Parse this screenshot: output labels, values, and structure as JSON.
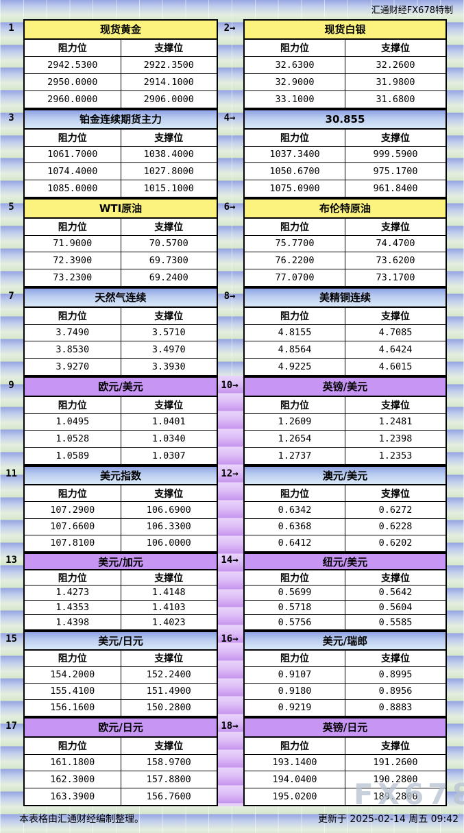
{
  "header": {
    "brand_note": "汇通财经FX678特制"
  },
  "labels": {
    "resistance": "阻力位",
    "support": "支撑位"
  },
  "footer": {
    "source_note": "本表格由汇通财经编制整理。",
    "updated_at": "更新于 2025-02-14 周五 09:42"
  },
  "watermark": "FX678",
  "colors": {
    "yellow_header": "#FBF37E",
    "blue_header_top": "#8FA3E4",
    "blue_header_bottom": "#DAE9F8",
    "purple_header": "#C795F3",
    "background_cell_top": "#97A6E2",
    "background_cell_bottom": "#D5E7CB",
    "purple_strip": "#C795EE"
  },
  "chart_data": {
    "type": "table",
    "columns": [
      "阻力位",
      "支撑位"
    ],
    "tables": [
      {
        "num": "1",
        "title": "现货黄金",
        "style": "yellow",
        "resistance": [
          "2942.5300",
          "2950.0000",
          "2960.0000"
        ],
        "support": [
          "2922.3500",
          "2914.1000",
          "2906.0000"
        ]
      },
      {
        "num": "2→",
        "title": "现货白银",
        "style": "yellow",
        "resistance": [
          "32.6300",
          "32.9000",
          "33.1000"
        ],
        "support": [
          "32.2600",
          "31.9800",
          "31.6800"
        ]
      },
      {
        "num": "3",
        "title": "铂金连续期货主力",
        "style": "blue",
        "resistance": [
          "1061.7000",
          "1074.4000",
          "1085.0000"
        ],
        "support": [
          "1038.4000",
          "1027.8000",
          "1015.1000"
        ]
      },
      {
        "num": "4→",
        "title": "30.855",
        "style": "blue",
        "resistance": [
          "1037.3400",
          "1050.6700",
          "1075.0900"
        ],
        "support": [
          "999.5900",
          "975.1700",
          "961.8400"
        ]
      },
      {
        "num": "5",
        "title": "WTI原油",
        "style": "yellow",
        "resistance": [
          "71.9000",
          "72.3900",
          "73.2300"
        ],
        "support": [
          "70.5700",
          "69.7300",
          "69.2400"
        ]
      },
      {
        "num": "6→",
        "title": "布伦特原油",
        "style": "yellow",
        "resistance": [
          "75.7700",
          "76.2200",
          "77.0700"
        ],
        "support": [
          "74.4700",
          "73.6200",
          "73.1700"
        ]
      },
      {
        "num": "7",
        "title": "天然气连续",
        "style": "blue",
        "resistance": [
          "3.7490",
          "3.8530",
          "3.9270"
        ],
        "support": [
          "3.5710",
          "3.4970",
          "3.3930"
        ]
      },
      {
        "num": "8→",
        "title": "美精铜连续",
        "style": "blue",
        "resistance": [
          "4.8155",
          "4.8564",
          "4.9225"
        ],
        "support": [
          "4.7085",
          "4.6424",
          "4.6015"
        ]
      },
      {
        "num": "9",
        "title": "欧元/美元",
        "style": "purple",
        "resistance": [
          "1.0495",
          "1.0528",
          "1.0589"
        ],
        "support": [
          "1.0401",
          "1.0340",
          "1.0307"
        ]
      },
      {
        "num": "10→",
        "title": "英镑/美元",
        "style": "purple",
        "resistance": [
          "1.2609",
          "1.2654",
          "1.2737"
        ],
        "support": [
          "1.2481",
          "1.2398",
          "1.2353"
        ]
      },
      {
        "num": "11",
        "title": "美元指数",
        "style": "blue",
        "resistance": [
          "107.2900",
          "107.6600",
          "107.8100"
        ],
        "support": [
          "106.6900",
          "106.3300",
          "106.0000"
        ]
      },
      {
        "num": "12→",
        "title": "澳元/美元",
        "style": "blue",
        "resistance": [
          "0.6342",
          "0.6368",
          "0.6412"
        ],
        "support": [
          "0.6272",
          "0.6228",
          "0.6202"
        ]
      },
      {
        "num": "13",
        "title": "美元/加元",
        "style": "purple",
        "resistance": [
          "1.4273",
          "1.4353",
          "1.4398"
        ],
        "support": [
          "1.4148",
          "1.4103",
          "1.4023"
        ]
      },
      {
        "num": "14→",
        "title": "纽元/美元",
        "style": "purple",
        "resistance": [
          "0.5699",
          "0.5718",
          "0.5756"
        ],
        "support": [
          "0.5642",
          "0.5604",
          "0.5585"
        ]
      },
      {
        "num": "15",
        "title": "美元/日元",
        "style": "blue",
        "resistance": [
          "154.2000",
          "155.4100",
          "156.1600"
        ],
        "support": [
          "152.2400",
          "151.4900",
          "150.2800"
        ]
      },
      {
        "num": "16→",
        "title": "美元/瑞郎",
        "style": "blue",
        "resistance": [
          "0.9107",
          "0.9180",
          "0.9219"
        ],
        "support": [
          "0.8995",
          "0.8956",
          "0.8883"
        ]
      },
      {
        "num": "17",
        "title": "欧元/日元",
        "style": "purple",
        "resistance": [
          "161.1800",
          "162.3000",
          "163.3900"
        ],
        "support": [
          "158.9700",
          "157.8800",
          "156.7600"
        ]
      },
      {
        "num": "18→",
        "title": "英镑/日元",
        "style": "purple",
        "resistance": [
          "193.1400",
          "194.0400",
          "195.0200"
        ],
        "support": [
          "191.2600",
          "190.2800",
          "189.2800"
        ]
      }
    ]
  }
}
